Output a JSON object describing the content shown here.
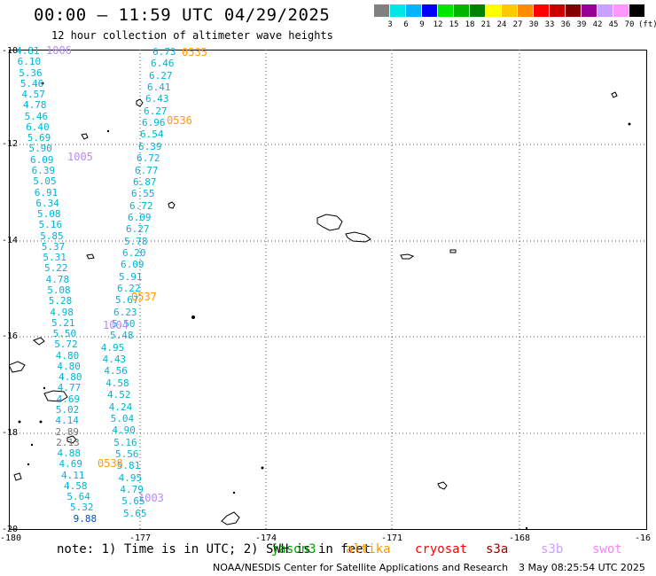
{
  "title": "00:00 — 11:59 UTC 04/29/2025",
  "subtitle": "12 hour collection of altimeter wave heights",
  "legend": {
    "colors": [
      "#808080",
      "#00e6e6",
      "#00b4ff",
      "#0000ff",
      "#00e600",
      "#00b400",
      "#008200",
      "#ffff00",
      "#ffc800",
      "#ff8c00",
      "#ff0000",
      "#c80000",
      "#820000",
      "#960096",
      "#c8a0ff",
      "#ff96ff",
      "#000000"
    ],
    "labels": [
      "3",
      "6",
      "9",
      "12",
      "15",
      "18",
      "21",
      "24",
      "27",
      "30",
      "33",
      "36",
      "39",
      "42",
      "45",
      "70"
    ],
    "unit": "(ft)"
  },
  "axes": {
    "y_labels": [
      "-10",
      "-12",
      "-14",
      "-16",
      "-18",
      "-20"
    ],
    "x_labels": [
      "-180",
      "-177",
      "-174",
      "-171",
      "-168",
      "-16"
    ]
  },
  "track_left": {
    "values": [
      "4.81",
      "6.10",
      "5.36",
      "5.46",
      "4.57",
      "4.78",
      "5.46",
      "6.40",
      "5.69",
      "5.90",
      "6.09",
      "6.39",
      "5.05",
      "6.91",
      "6.34",
      "5.08",
      "5.16",
      "5.85",
      "5.37",
      "5.31",
      "5.22",
      "4.78",
      "5.08",
      "5.28",
      "4.98",
      "5.21",
      "5.50",
      "5.72",
      "4.80",
      "4.80",
      "4.80",
      "4.77",
      "4.69",
      "5.02",
      "4.14",
      "2.89",
      "2.13",
      "4.88",
      "4.69",
      "4.11",
      "4.58",
      "5.64",
      "5.32",
      "9.88"
    ]
  },
  "track_right": {
    "values": [
      "6.73",
      "6.46",
      "6.27",
      "6.41",
      "6.43",
      "6.27",
      "6.96",
      "6.54",
      "6.39",
      "6.72",
      "6.77",
      "6.87",
      "6.55",
      "6.72",
      "6.09",
      "6.27",
      "5.78",
      "6.20",
      "6.09",
      "5.91",
      "6.22",
      "5.67",
      "6.23",
      "5.50",
      "5.48",
      "4.95",
      "4.43",
      "4.56",
      "4.58",
      "4.52",
      "4.24",
      "5.04",
      "4.90",
      "5.16",
      "5.56",
      "5.81",
      "4.95",
      "4.79",
      "5.65",
      "5.65"
    ]
  },
  "pass_labels": {
    "p1006": "1006",
    "p0535": "0535",
    "p0536": "0536",
    "p1005": "1005",
    "p0537": "0537",
    "p1004": "1004",
    "p0538": "0538",
    "p1003": "1003"
  },
  "note": "note: 1) Time is in UTC; 2) SWH is in feet",
  "satellites": [
    {
      "name": "jason3",
      "color": "#00a000"
    },
    {
      "name": "altika",
      "color": "#ff9900"
    },
    {
      "name": "cryosat",
      "color": "#ff0000"
    },
    {
      "name": "s3a",
      "color": "#a00000"
    },
    {
      "name": "s3b",
      "color": "#c8a0ff"
    },
    {
      "name": "swot",
      "color": "#ff80ff"
    }
  ],
  "credit": "NOAA/NESDIS Center for Satellite Applications and Research",
  "timestamp": "3 May 08:25:54 UTC 2025"
}
